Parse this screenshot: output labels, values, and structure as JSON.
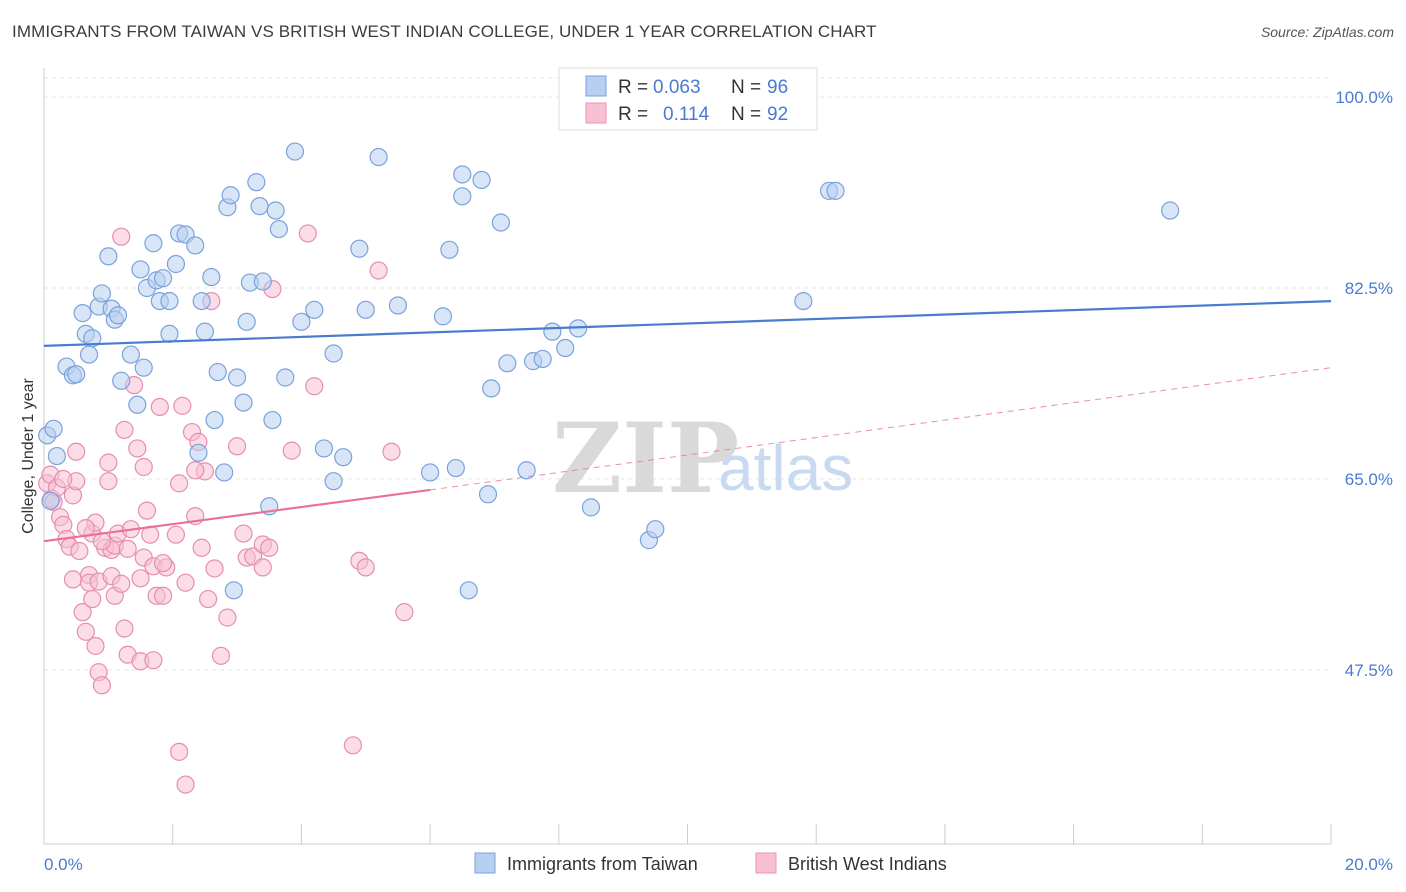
{
  "title": "IMMIGRANTS FROM TAIWAN VS BRITISH WEST INDIAN COLLEGE, UNDER 1 YEAR CORRELATION CHART",
  "source": "Source: ZipAtlas.com",
  "watermark": {
    "zip": "ZIP",
    "atlas": "atlas"
  },
  "colors": {
    "blue": "#4a7bd0",
    "blue_fill": "#b8d0f0",
    "pink": "#e8709a",
    "pink_fill": "#f7c0d4",
    "grid": "#e6e6e6"
  },
  "chart_data": {
    "type": "scatter",
    "title": "IMMIGRANTS FROM TAIWAN VS BRITISH WEST INDIAN COLLEGE, UNDER 1 YEAR CORRELATION CHART",
    "xlabel": "",
    "ylabel": "College, Under 1 year",
    "xlim": [
      0,
      20
    ],
    "ylim": [
      32,
      102
    ],
    "x_tick_labels": {
      "min": "0.0%",
      "max": "20.0%"
    },
    "y_ticks": [
      {
        "value": 100,
        "label": "100.0%"
      },
      {
        "value": 82.5,
        "label": "82.5%"
      },
      {
        "value": 65,
        "label": "65.0%"
      },
      {
        "value": 47.5,
        "label": "47.5%"
      }
    ],
    "legend": [
      {
        "series": "Immigrants from Taiwan",
        "r_label": "R =",
        "r_value": "0.063",
        "n_label": "N =",
        "n_value": "96"
      },
      {
        "series": "British West Indians",
        "r_label": "R =",
        "r_value": "0.114",
        "n_label": "N =",
        "n_value": "92"
      }
    ],
    "series": [
      {
        "name": "Immigrants from Taiwan",
        "trend": {
          "x0": 0,
          "y0": 77.2,
          "x1": 20,
          "y1": 81.3
        },
        "points": [
          [
            0.05,
            69.0
          ],
          [
            0.15,
            69.6
          ],
          [
            0.2,
            67.1
          ],
          [
            0.35,
            75.3
          ],
          [
            0.45,
            74.5
          ],
          [
            0.5,
            74.6
          ],
          [
            0.6,
            80.2
          ],
          [
            0.65,
            78.3
          ],
          [
            0.7,
            76.4
          ],
          [
            0.75,
            77.9
          ],
          [
            0.85,
            80.8
          ],
          [
            0.9,
            82.0
          ],
          [
            1.0,
            85.4
          ],
          [
            1.05,
            80.6
          ],
          [
            1.1,
            79.6
          ],
          [
            1.15,
            80.0
          ],
          [
            1.2,
            74.0
          ],
          [
            1.35,
            76.4
          ],
          [
            1.45,
            71.8
          ],
          [
            1.55,
            75.2
          ],
          [
            1.5,
            84.2
          ],
          [
            1.6,
            82.5
          ],
          [
            1.7,
            86.6
          ],
          [
            1.75,
            83.2
          ],
          [
            1.8,
            81.3
          ],
          [
            1.85,
            83.4
          ],
          [
            1.95,
            81.3
          ],
          [
            1.95,
            78.3
          ],
          [
            2.05,
            84.7
          ],
          [
            2.1,
            87.5
          ],
          [
            2.2,
            87.4
          ],
          [
            2.35,
            86.4
          ],
          [
            2.4,
            67.4
          ],
          [
            2.45,
            81.3
          ],
          [
            2.5,
            78.5
          ],
          [
            2.6,
            83.5
          ],
          [
            2.65,
            70.4
          ],
          [
            2.7,
            74.8
          ],
          [
            2.8,
            65.6
          ],
          [
            2.85,
            89.9
          ],
          [
            2.9,
            91.0
          ],
          [
            2.95,
            54.8
          ],
          [
            3.0,
            74.3
          ],
          [
            3.1,
            72.0
          ],
          [
            3.15,
            79.4
          ],
          [
            3.2,
            83.0
          ],
          [
            3.3,
            92.2
          ],
          [
            3.35,
            90.0
          ],
          [
            3.4,
            83.1
          ],
          [
            3.5,
            62.5
          ],
          [
            3.55,
            70.4
          ],
          [
            3.6,
            89.6
          ],
          [
            3.65,
            87.9
          ],
          [
            3.75,
            74.3
          ],
          [
            3.9,
            95.0
          ],
          [
            4.0,
            79.4
          ],
          [
            4.2,
            80.5
          ],
          [
            4.35,
            67.8
          ],
          [
            4.5,
            76.5
          ],
          [
            4.5,
            64.8
          ],
          [
            4.65,
            67.0
          ],
          [
            4.9,
            86.1
          ],
          [
            5.0,
            80.5
          ],
          [
            5.2,
            94.5
          ],
          [
            5.5,
            80.9
          ],
          [
            6.0,
            65.6
          ],
          [
            6.2,
            79.9
          ],
          [
            6.3,
            86.0
          ],
          [
            6.4,
            66.0
          ],
          [
            6.5,
            92.9
          ],
          [
            6.5,
            90.9
          ],
          [
            6.6,
            54.8
          ],
          [
            6.8,
            92.4
          ],
          [
            6.9,
            63.6
          ],
          [
            6.95,
            73.3
          ],
          [
            7.1,
            88.5
          ],
          [
            7.2,
            75.6
          ],
          [
            7.5,
            65.8
          ],
          [
            7.6,
            75.8
          ],
          [
            7.75,
            76.0
          ],
          [
            7.9,
            78.5
          ],
          [
            8.1,
            77.0
          ],
          [
            8.3,
            78.8
          ],
          [
            8.5,
            62.4
          ],
          [
            9.4,
            59.4
          ],
          [
            9.5,
            60.4
          ],
          [
            11.8,
            81.3
          ],
          [
            12.2,
            91.4
          ],
          [
            12.3,
            91.4
          ],
          [
            17.5,
            89.6
          ],
          [
            0.1,
            63.0
          ]
        ]
      },
      {
        "name": "British West Indians",
        "trend": {
          "x0": 0,
          "y0": 59.3,
          "x1": 6.0,
          "y1": 64.0
        },
        "trend_dashed": {
          "x0": 6.0,
          "y0": 64.0,
          "x1": 20,
          "y1": 75.2
        },
        "points": [
          [
            0.05,
            64.6
          ],
          [
            0.1,
            65.4
          ],
          [
            0.12,
            63.2
          ],
          [
            0.15,
            62.9
          ],
          [
            0.2,
            64.2
          ],
          [
            0.25,
            61.5
          ],
          [
            0.3,
            60.8
          ],
          [
            0.35,
            59.5
          ],
          [
            0.4,
            58.8
          ],
          [
            0.45,
            55.8
          ],
          [
            0.45,
            63.5
          ],
          [
            0.5,
            67.5
          ],
          [
            0.5,
            64.8
          ],
          [
            0.55,
            58.4
          ],
          [
            0.6,
            52.8
          ],
          [
            0.65,
            51.0
          ],
          [
            0.7,
            56.2
          ],
          [
            0.7,
            55.5
          ],
          [
            0.75,
            60.0
          ],
          [
            0.75,
            54.0
          ],
          [
            0.8,
            49.7
          ],
          [
            0.8,
            61.0
          ],
          [
            0.85,
            55.6
          ],
          [
            0.85,
            47.3
          ],
          [
            0.9,
            46.1
          ],
          [
            0.95,
            58.7
          ],
          [
            1.0,
            64.8
          ],
          [
            1.0,
            66.5
          ],
          [
            1.05,
            58.5
          ],
          [
            1.05,
            56.1
          ],
          [
            1.1,
            54.3
          ],
          [
            1.1,
            58.9
          ],
          [
            1.15,
            60.0
          ],
          [
            1.2,
            55.4
          ],
          [
            1.25,
            69.5
          ],
          [
            1.25,
            51.3
          ],
          [
            1.3,
            48.9
          ],
          [
            1.3,
            58.6
          ],
          [
            1.35,
            60.4
          ],
          [
            1.4,
            73.6
          ],
          [
            1.45,
            67.8
          ],
          [
            1.5,
            55.9
          ],
          [
            1.5,
            48.3
          ],
          [
            1.55,
            66.1
          ],
          [
            1.55,
            57.8
          ],
          [
            1.6,
            62.1
          ],
          [
            1.65,
            59.9
          ],
          [
            1.7,
            48.4
          ],
          [
            1.7,
            57.0
          ],
          [
            1.75,
            54.3
          ],
          [
            1.8,
            71.6
          ],
          [
            1.85,
            54.3
          ],
          [
            1.9,
            56.9
          ],
          [
            2.05,
            59.9
          ],
          [
            2.1,
            64.6
          ],
          [
            2.15,
            71.7
          ],
          [
            2.2,
            55.5
          ],
          [
            2.3,
            69.3
          ],
          [
            2.35,
            61.6
          ],
          [
            2.4,
            68.4
          ],
          [
            2.45,
            58.7
          ],
          [
            2.5,
            65.7
          ],
          [
            2.55,
            54.0
          ],
          [
            2.6,
            81.3
          ],
          [
            2.65,
            56.8
          ],
          [
            2.75,
            48.8
          ],
          [
            2.85,
            52.3
          ],
          [
            3.0,
            68.0
          ],
          [
            3.1,
            60.0
          ],
          [
            3.15,
            57.8
          ],
          [
            3.25,
            57.9
          ],
          [
            3.4,
            56.9
          ],
          [
            3.4,
            59.0
          ],
          [
            3.5,
            58.7
          ],
          [
            3.55,
            82.4
          ],
          [
            3.85,
            67.6
          ],
          [
            4.1,
            87.5
          ],
          [
            4.2,
            73.5
          ],
          [
            4.8,
            40.6
          ],
          [
            4.9,
            57.5
          ],
          [
            5.0,
            56.9
          ],
          [
            5.2,
            84.1
          ],
          [
            5.4,
            67.5
          ],
          [
            5.6,
            52.8
          ],
          [
            2.1,
            40.0
          ],
          [
            2.2,
            37.0
          ],
          [
            1.2,
            87.2
          ],
          [
            0.65,
            60.5
          ],
          [
            0.9,
            59.3
          ],
          [
            1.85,
            57.3
          ],
          [
            2.35,
            65.8
          ],
          [
            0.3,
            65.0
          ]
        ]
      }
    ]
  },
  "bottom_legend": {
    "blue_label": "Immigrants from Taiwan",
    "pink_label": "British West Indians"
  }
}
